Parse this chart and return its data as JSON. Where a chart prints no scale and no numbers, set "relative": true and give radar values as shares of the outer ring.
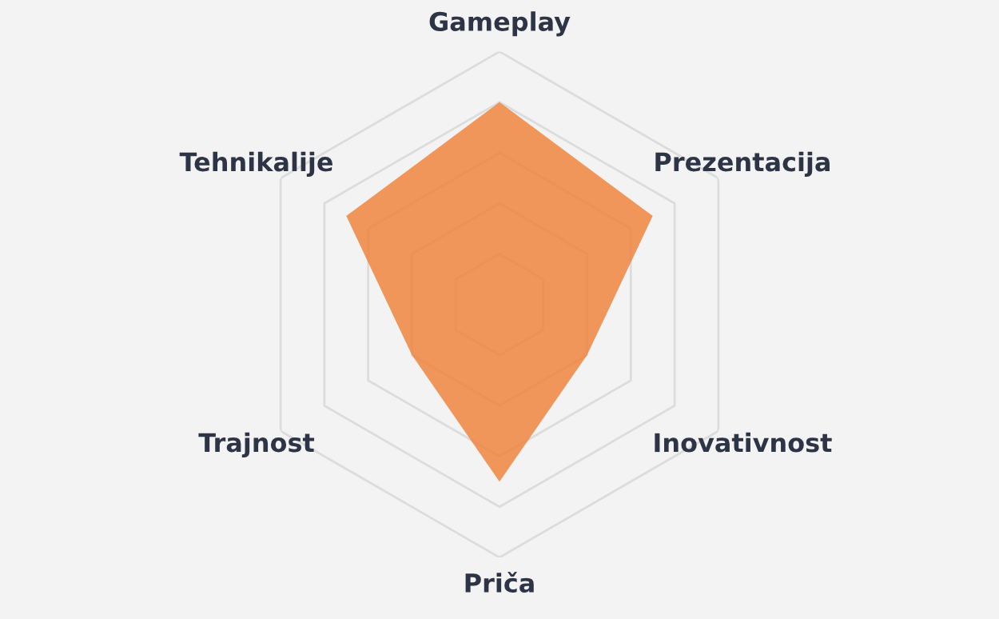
{
  "chart_data": {
    "type": "radar",
    "relative": true,
    "grid": true,
    "categories": [
      "Gameplay",
      "Prezentacija",
      "Inovativnost",
      "Priča",
      "Trajnost",
      "Tehnikalije"
    ],
    "series": [
      {
        "color": "#ef8540",
        "values": [
          0.8,
          0.7,
          0.4,
          0.7,
          0.4,
          0.7
        ]
      }
    ]
  }
}
